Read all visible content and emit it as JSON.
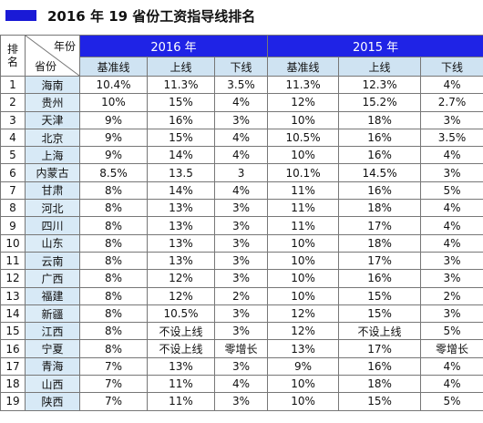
{
  "title": "2016 年 19 省份工资指导线排名",
  "header": {
    "rank_label": "排名",
    "corner_top": "年份",
    "corner_bottom": "省份",
    "year_2016": "2016 年",
    "year_2015": "2015 年",
    "sub_cols": [
      "基准线",
      "上线",
      "下线",
      "基准线",
      "上线",
      "下线"
    ]
  },
  "rows": [
    {
      "rank": "1",
      "province": "海南",
      "b16": "10.4%",
      "u16": "11.3%",
      "l16": "3.5%",
      "b15": "11.3%",
      "u15": "12.3%",
      "l15": "4%"
    },
    {
      "rank": "2",
      "province": "贵州",
      "b16": "10%",
      "u16": "15%",
      "l16": "4%",
      "b15": "12%",
      "u15": "15.2%",
      "l15": "2.7%"
    },
    {
      "rank": "3",
      "province": "天津",
      "b16": "9%",
      "u16": "16%",
      "l16": "3%",
      "b15": "10%",
      "u15": "18%",
      "l15": "3%"
    },
    {
      "rank": "4",
      "province": "北京",
      "b16": "9%",
      "u16": "15%",
      "l16": "4%",
      "b15": "10.5%",
      "u15": "16%",
      "l15": "3.5%"
    },
    {
      "rank": "5",
      "province": "上海",
      "b16": "9%",
      "u16": "14%",
      "l16": "4%",
      "b15": "10%",
      "u15": "16%",
      "l15": "4%"
    },
    {
      "rank": "6",
      "province": "内蒙古",
      "b16": "8.5%",
      "u16": "13.5",
      "l16": "3",
      "b15": "10.1%",
      "u15": "14.5%",
      "l15": "3%"
    },
    {
      "rank": "7",
      "province": "甘肃",
      "b16": "8%",
      "u16": "14%",
      "l16": "4%",
      "b15": "11%",
      "u15": "16%",
      "l15": "5%"
    },
    {
      "rank": "8",
      "province": "河北",
      "b16": "8%",
      "u16": "13%",
      "l16": "3%",
      "b15": "11%",
      "u15": "18%",
      "l15": "4%"
    },
    {
      "rank": "9",
      "province": "四川",
      "b16": "8%",
      "u16": "13%",
      "l16": "3%",
      "b15": "11%",
      "u15": "17%",
      "l15": "4%"
    },
    {
      "rank": "10",
      "province": "山东",
      "b16": "8%",
      "u16": "13%",
      "l16": "3%",
      "b15": "10%",
      "u15": "18%",
      "l15": "4%"
    },
    {
      "rank": "11",
      "province": "云南",
      "b16": "8%",
      "u16": "13%",
      "l16": "3%",
      "b15": "10%",
      "u15": "17%",
      "l15": "3%"
    },
    {
      "rank": "12",
      "province": "广西",
      "b16": "8%",
      "u16": "12%",
      "l16": "3%",
      "b15": "10%",
      "u15": "16%",
      "l15": "3%"
    },
    {
      "rank": "13",
      "province": "福建",
      "b16": "8%",
      "u16": "12%",
      "l16": "2%",
      "b15": "10%",
      "u15": "15%",
      "l15": "2%"
    },
    {
      "rank": "14",
      "province": "新疆",
      "b16": "8%",
      "u16": "10.5%",
      "l16": "3%",
      "b15": "12%",
      "u15": "15%",
      "l15": "3%"
    },
    {
      "rank": "15",
      "province": "江西",
      "b16": "8%",
      "u16": "不设上线",
      "l16": "3%",
      "b15": "12%",
      "u15": "不设上线",
      "l15": "5%"
    },
    {
      "rank": "16",
      "province": "宁夏",
      "b16": "8%",
      "u16": "不设上线",
      "l16": "零增长",
      "b15": "13%",
      "u15": "17%",
      "l15": "零增长"
    },
    {
      "rank": "17",
      "province": "青海",
      "b16": "7%",
      "u16": "13%",
      "l16": "3%",
      "b15": "9%",
      "u15": "16%",
      "l15": "4%"
    },
    {
      "rank": "18",
      "province": "山西",
      "b16": "7%",
      "u16": "11%",
      "l16": "4%",
      "b15": "10%",
      "u15": "18%",
      "l15": "4%"
    },
    {
      "rank": "19",
      "province": "陕西",
      "b16": "7%",
      "u16": "11%",
      "l16": "3%",
      "b15": "10%",
      "u15": "15%",
      "l15": "5%"
    }
  ],
  "colors": {
    "accent": "#1f23e6",
    "province_bg": "#dcecf7",
    "title_mark": "#1a1ad6"
  }
}
